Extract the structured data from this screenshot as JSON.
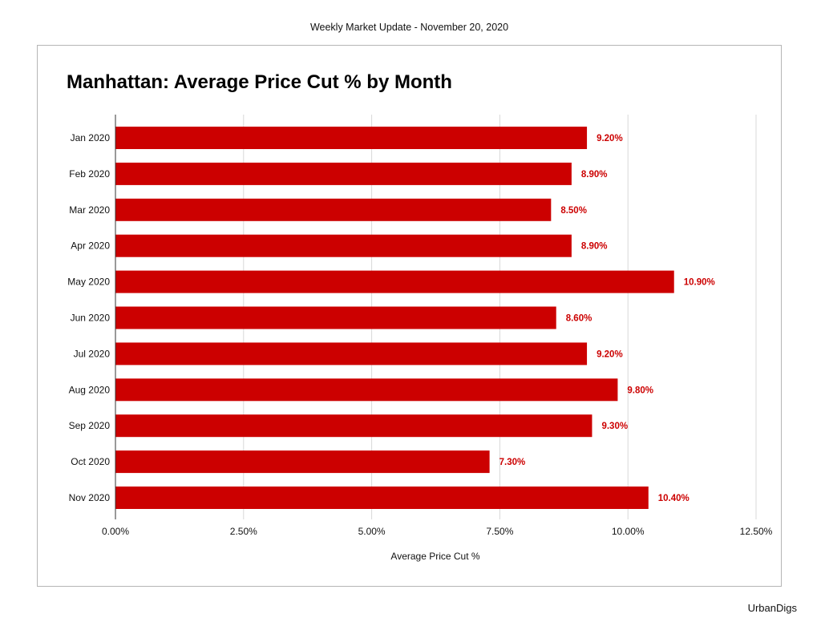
{
  "header": {
    "text": "Weekly Market Update - November 20, 2020"
  },
  "footer": {
    "brand": "UrbanDigs"
  },
  "chart_data": {
    "type": "bar",
    "orientation": "horizontal",
    "title": "Manhattan: Average Price Cut % by Month",
    "xlabel": "Average Price Cut %",
    "ylabel": "",
    "categories": [
      "Jan 2020",
      "Feb 2020",
      "Mar 2020",
      "Apr 2020",
      "May 2020",
      "Jun 2020",
      "Jul 2020",
      "Aug 2020",
      "Sep 2020",
      "Oct 2020",
      "Nov 2020"
    ],
    "values": [
      9.2,
      8.9,
      8.5,
      8.9,
      10.9,
      8.6,
      9.2,
      9.8,
      9.3,
      7.3,
      10.4
    ],
    "value_labels": [
      "9.20%",
      "8.90%",
      "8.50%",
      "8.90%",
      "10.90%",
      "8.60%",
      "9.20%",
      "9.80%",
      "9.30%",
      "7.30%",
      "10.40%"
    ],
    "xlim": [
      0,
      12.5
    ],
    "x_ticks": [
      0,
      2.5,
      5,
      7.5,
      10,
      12.5
    ],
    "x_tick_labels": [
      "0.00%",
      "2.50%",
      "5.00%",
      "7.50%",
      "10.00%",
      "12.50%"
    ],
    "grid": "vertical",
    "legend": "none",
    "colors": {
      "bar": "#cc0000",
      "label": "#cc0000",
      "grid": "#d9d9d9",
      "axis": "#333333"
    }
  }
}
